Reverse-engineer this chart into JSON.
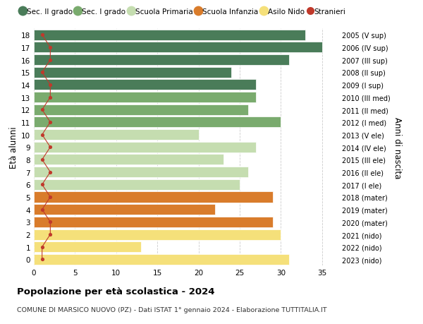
{
  "ages": [
    18,
    17,
    16,
    15,
    14,
    13,
    12,
    11,
    10,
    9,
    8,
    7,
    6,
    5,
    4,
    3,
    2,
    1,
    0
  ],
  "right_labels": [
    "2005 (V sup)",
    "2006 (IV sup)",
    "2007 (III sup)",
    "2008 (II sup)",
    "2009 (I sup)",
    "2010 (III med)",
    "2011 (II med)",
    "2012 (I med)",
    "2013 (V ele)",
    "2014 (IV ele)",
    "2015 (III ele)",
    "2016 (II ele)",
    "2017 (I ele)",
    "2018 (mater)",
    "2019 (mater)",
    "2020 (mater)",
    "2021 (nido)",
    "2022 (nido)",
    "2023 (nido)"
  ],
  "bar_values": [
    33,
    35,
    31,
    24,
    27,
    27,
    26,
    30,
    20,
    27,
    23,
    26,
    25,
    29,
    22,
    29,
    30,
    13,
    31
  ],
  "bar_colors": [
    "#4a7c59",
    "#4a7c59",
    "#4a7c59",
    "#4a7c59",
    "#4a7c59",
    "#7aab6e",
    "#7aab6e",
    "#7aab6e",
    "#c5ddb0",
    "#c5ddb0",
    "#c5ddb0",
    "#c5ddb0",
    "#c5ddb0",
    "#d97c2b",
    "#d97c2b",
    "#d97c2b",
    "#f5e07a",
    "#f5e07a",
    "#f5e07a"
  ],
  "stranieri": [
    1,
    2,
    2,
    1,
    2,
    2,
    1,
    2,
    1,
    2,
    1,
    2,
    1,
    2,
    1,
    2,
    2,
    1,
    1
  ],
  "legend_labels": [
    "Sec. II grado",
    "Sec. I grado",
    "Scuola Primaria",
    "Scuola Infanzia",
    "Asilo Nido",
    "Stranieri"
  ],
  "legend_colors": [
    "#4a7c59",
    "#7aab6e",
    "#c5ddb0",
    "#d97c2b",
    "#f5e07a",
    "#c0392b"
  ],
  "title": "Popolazione per età scolastica - 2024",
  "subtitle": "COMUNE DI MARSICO NUOVO (PZ) - Dati ISTAT 1° gennaio 2024 - Elaborazione TUTTITALIA.IT",
  "ylabel_left": "Età alunni",
  "ylabel_right": "Anni di nascita",
  "xlim": [
    0,
    37
  ],
  "xticks": [
    0,
    5,
    10,
    15,
    20,
    25,
    30,
    35
  ],
  "background_color": "#ffffff",
  "grid_color": "#cccccc",
  "bar_height": 0.85
}
